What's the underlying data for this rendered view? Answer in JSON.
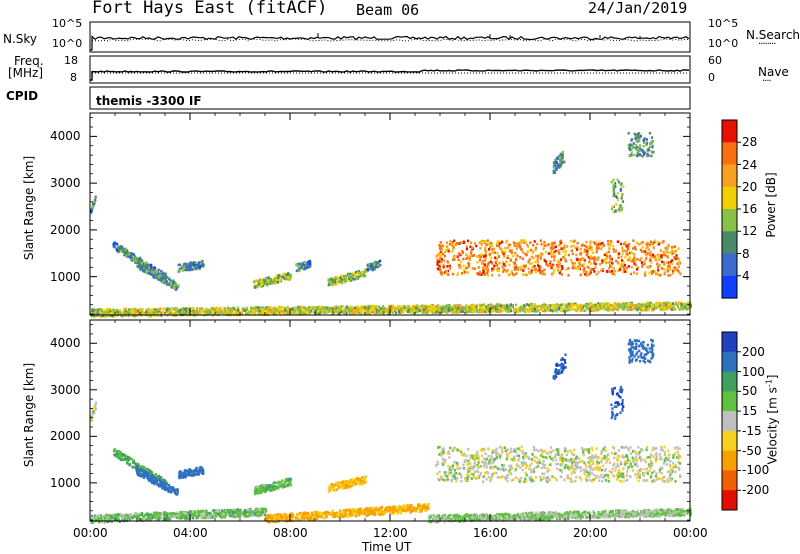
{
  "header": {
    "station": "Fort Hays East (fitACF)",
    "beam": "Beam 06",
    "date": "24/Jan/2019"
  },
  "noise_panel": {
    "left_label": "N.Sky",
    "left_ticks": [
      "10^5",
      "10^0"
    ],
    "right_ticks": [
      "10^5",
      "10^0"
    ],
    "right_label": "N.Search",
    "right_label_marker": "········"
  },
  "freq_panel": {
    "left_label_line1": "Freq.",
    "left_label_line2": "[MHz]",
    "left_ticks": [
      "18",
      "8"
    ],
    "right_ticks": [
      "60",
      "0"
    ],
    "right_label": "Nave",
    "right_label_marker": "····"
  },
  "cpid_panel": {
    "label": "CPID",
    "text": "themis -3300 IF"
  },
  "time_axis": {
    "label": "Time UT",
    "ticks": [
      "00:00",
      "04:00",
      "08:00",
      "12:00",
      "16:00",
      "20:00",
      "00:00"
    ]
  },
  "range_axis": {
    "label": "Slant Range [km]",
    "ticks": [
      "1000",
      "2000",
      "3000",
      "4000"
    ]
  },
  "power_colorbar": {
    "label": "Power [dB]",
    "ticks": [
      "4",
      "8",
      "12",
      "16",
      "20",
      "24",
      "28"
    ],
    "colors": [
      "#1040ff",
      "#3a6cd0",
      "#4a8a6a",
      "#88c048",
      "#f0d000",
      "#f8a020",
      "#f87010",
      "#e81000"
    ]
  },
  "velocity_colorbar": {
    "label": "Velocity [m s",
    "label_exp": "-1",
    "label_end": "]",
    "ticks": [
      "200",
      "100",
      "50",
      "15",
      "-15",
      "-50",
      "-100",
      "-200"
    ],
    "colors": [
      "#2040c0",
      "#3070c0",
      "#40a060",
      "#60c040",
      "#c0c0c0",
      "#f8d020",
      "#f8a000",
      "#f06000",
      "#e01000"
    ]
  },
  "chart_data": [
    {
      "type": "heatmap",
      "title": "Power",
      "xlabel": "Time UT",
      "ylabel": "Slant Range [km]",
      "xlim": [
        "00:00",
        "24:00"
      ],
      "ylim": [
        180,
        4500
      ],
      "colorbar": {
        "label": "Power [dB]",
        "range": [
          0,
          32
        ]
      },
      "scatter_regions": [
        {
          "t_start": 0.0,
          "t_end": 24.0,
          "r_start": 250,
          "r_end": 400,
          "level": 16
        },
        {
          "t_start": 0.0,
          "t_end": 0.2,
          "r_start": 2400,
          "r_end": 2700,
          "level": 10
        },
        {
          "t_start": 0.9,
          "t_end": 3.0,
          "r_start": 1700,
          "r_end": 1000,
          "level": 8
        },
        {
          "t_start": 1.8,
          "t_end": 3.5,
          "r_start": 1300,
          "r_end": 800,
          "level": 10
        },
        {
          "t_start": 3.5,
          "t_end": 4.5,
          "r_start": 1200,
          "r_end": 1300,
          "level": 9
        },
        {
          "t_start": 6.5,
          "t_end": 8.0,
          "r_start": 850,
          "r_end": 1050,
          "level": 14
        },
        {
          "t_start": 8.2,
          "t_end": 8.8,
          "r_start": 1200,
          "r_end": 1300,
          "level": 8
        },
        {
          "t_start": 9.5,
          "t_end": 11.0,
          "r_start": 900,
          "r_end": 1100,
          "level": 14
        },
        {
          "t_start": 11.0,
          "t_end": 11.6,
          "r_start": 1200,
          "r_end": 1300,
          "level": 8
        },
        {
          "t_start": 13.8,
          "t_end": 23.6,
          "r_start": 1050,
          "r_end": 1800,
          "level": 24
        },
        {
          "t_start": 18.5,
          "t_end": 19.0,
          "r_start": 3350,
          "r_end": 3650,
          "level": 8
        },
        {
          "t_start": 20.8,
          "t_end": 21.3,
          "r_start": 2400,
          "r_end": 3100,
          "level": 12
        },
        {
          "t_start": 21.5,
          "t_end": 22.5,
          "r_start": 3600,
          "r_end": 4100,
          "level": 10
        }
      ]
    },
    {
      "type": "heatmap",
      "title": "Velocity",
      "xlabel": "Time UT",
      "ylabel": "Slant Range [km]",
      "xlim": [
        "00:00",
        "24:00"
      ],
      "ylim": [
        180,
        4500
      ],
      "colorbar": {
        "label": "Velocity [m s-1]",
        "range": [
          -200,
          200
        ]
      },
      "scatter_regions": [
        {
          "t_start": 0.0,
          "t_end": 7.0,
          "r_start": 250,
          "r_end": 400,
          "velocity": 30
        },
        {
          "t_start": 7.0,
          "t_end": 13.5,
          "r_start": 250,
          "r_end": 500,
          "velocity": -60
        },
        {
          "t_start": 13.5,
          "t_end": 24.0,
          "r_start": 250,
          "r_end": 400,
          "velocity": 20
        },
        {
          "t_start": 0.0,
          "t_end": 0.2,
          "r_start": 2400,
          "r_end": 2700,
          "velocity": 0
        },
        {
          "t_start": 0.9,
          "t_end": 3.0,
          "r_start": 1700,
          "r_end": 1000,
          "velocity": 60
        },
        {
          "t_start": 1.8,
          "t_end": 3.5,
          "r_start": 1300,
          "r_end": 800,
          "velocity": 150
        },
        {
          "t_start": 3.5,
          "t_end": 4.5,
          "r_start": 1200,
          "r_end": 1300,
          "velocity": 150
        },
        {
          "t_start": 6.5,
          "t_end": 8.0,
          "r_start": 850,
          "r_end": 1050,
          "velocity": 40
        },
        {
          "t_start": 9.5,
          "t_end": 11.0,
          "r_start": 900,
          "r_end": 1100,
          "velocity": -50
        },
        {
          "t_start": 13.8,
          "t_end": 23.6,
          "r_start": 1050,
          "r_end": 1800,
          "velocity": 0
        },
        {
          "t_start": 18.5,
          "t_end": 19.0,
          "r_start": 3350,
          "r_end": 3650,
          "velocity": 200
        },
        {
          "t_start": 20.8,
          "t_end": 21.3,
          "r_start": 2400,
          "r_end": 3100,
          "velocity": 200
        },
        {
          "t_start": 21.5,
          "t_end": 22.5,
          "r_start": 3600,
          "r_end": 4100,
          "velocity": 150
        }
      ]
    }
  ]
}
